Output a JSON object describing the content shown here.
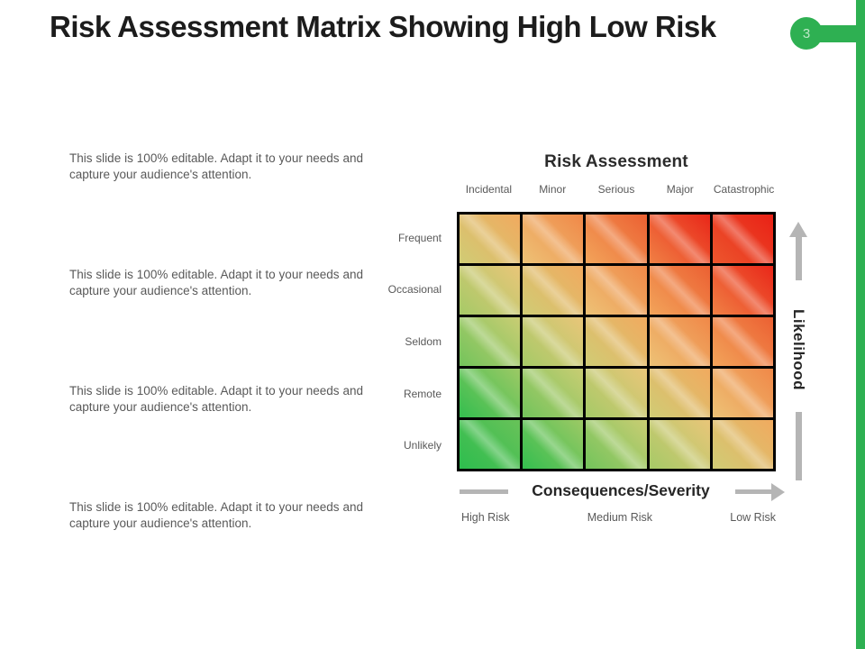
{
  "slide": {
    "title": "Risk Assessment Matrix Showing High Low Risk",
    "page_number": "3",
    "accent_color": "#2eb052"
  },
  "text_blocks": [
    "This slide is 100% editable. Adapt it to your needs and capture your audience's attention.",
    "This slide is 100% editable. Adapt it to your needs and capture your audience's attention.",
    "This slide is 100% editable. Adapt it to your needs and capture your audience's attention.",
    "This slide is 100% editable. Adapt it to your needs and capture your audience's attention."
  ],
  "chart_data": {
    "type": "heatmap",
    "title": "Risk Assessment",
    "x_categories": [
      "Incidental",
      "Minor",
      "Serious",
      "Major",
      "Catastrophic"
    ],
    "y_categories": [
      "Frequent",
      "Occasional",
      "Seldom",
      "Remote",
      "Unlikely"
    ],
    "xlabel": "Consequences/Severity",
    "ylabel": "Likelihood",
    "risk_labels": [
      "High Risk",
      "Medium Risk",
      "Low Risk"
    ],
    "risk_scores": [
      [
        4,
        5,
        6,
        7,
        8
      ],
      [
        3,
        4,
        5,
        6,
        7
      ],
      [
        2,
        3,
        4,
        5,
        6
      ],
      [
        1,
        2,
        3,
        4,
        5
      ],
      [
        0,
        1,
        2,
        3,
        4
      ]
    ],
    "color_scale": [
      "#2dbd4e",
      "#6ec35a",
      "#a2ca66",
      "#cdcd74",
      "#ecc579",
      "#f2a75c",
      "#f08446",
      "#ec5c30",
      "#e92116"
    ],
    "grid_line_color": "#000000",
    "axis_arrow_color": "#b5b5b5"
  }
}
